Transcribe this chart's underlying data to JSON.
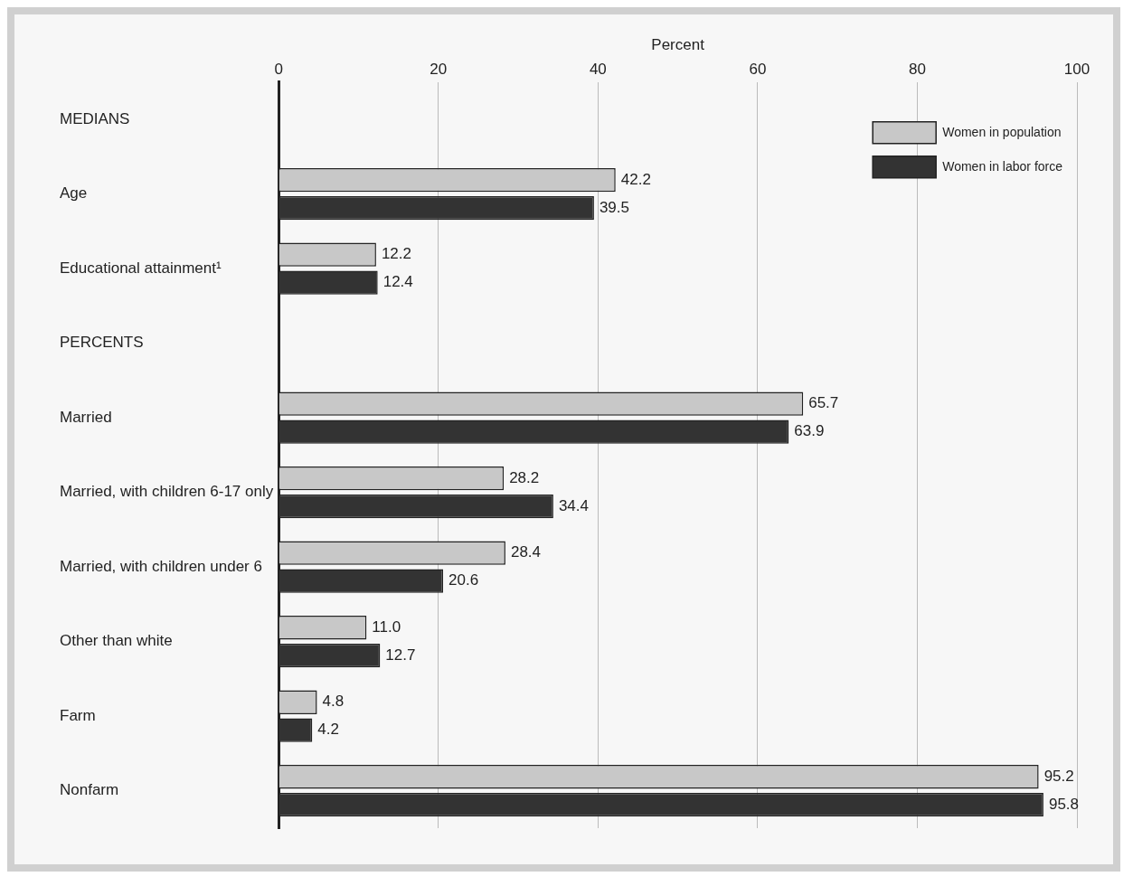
{
  "chart_data": {
    "type": "bar",
    "orientation": "horizontal",
    "xlabel": "Percent",
    "categories": [
      "MEDIANS",
      "Age",
      "Educational attainment¹",
      "PERCENTS",
      "Married",
      "Married, with children 6-17 only",
      "Married, with children under 6",
      "Other than white",
      "Farm",
      "Nonfarm"
    ],
    "series": [
      {
        "name": "Women in population",
        "color": "#c8c8c8",
        "values": [
          null,
          42.2,
          12.2,
          null,
          65.7,
          28.2,
          28.4,
          11.0,
          4.8,
          95.2
        ],
        "value_labels": [
          null,
          "42.2",
          "12.2",
          null,
          "65.7",
          "28.2",
          "28.4",
          "11.0",
          "4.8",
          "95.2"
        ]
      },
      {
        "name": "Women in labor force",
        "color": "#333333",
        "values": [
          null,
          39.5,
          12.4,
          null,
          63.9,
          34.4,
          20.6,
          12.7,
          4.2,
          95.8
        ],
        "value_labels": [
          null,
          "39.5",
          "12.4",
          null,
          "63.9",
          "34.4",
          "20.6",
          "12.7",
          "4.2",
          "95.8"
        ]
      }
    ],
    "xlim": [
      0,
      100
    ],
    "xticks": [
      0,
      20,
      40,
      60,
      80,
      100
    ],
    "grid": "x",
    "legend": "top right",
    "data_labels": true
  }
}
